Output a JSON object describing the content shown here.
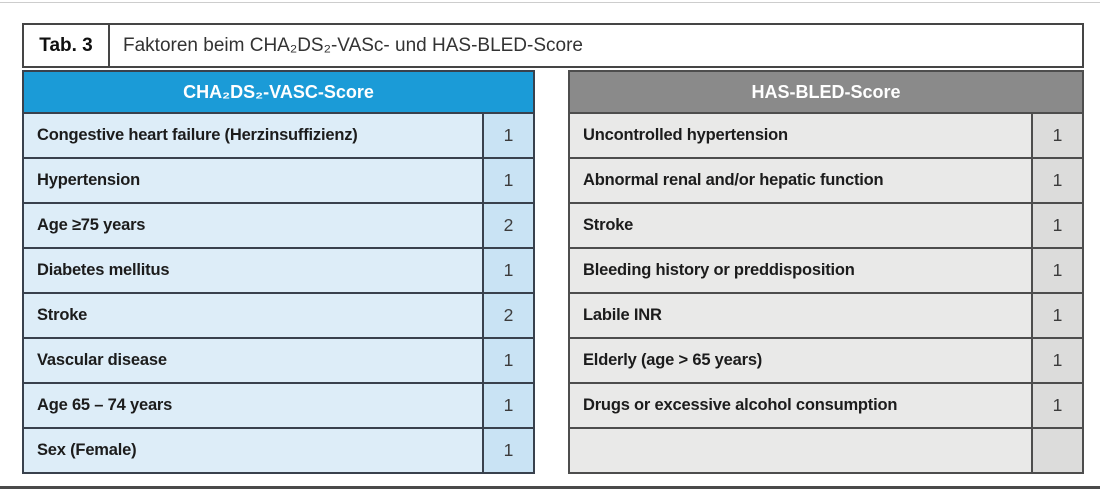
{
  "caption": {
    "number": "Tab. 3",
    "title": "Faktoren beim CHA₂DS₂-VASc- und HAS-BLED-Score"
  },
  "tables": {
    "left": {
      "header": "CHA₂DS₂-VASC-Score",
      "rows": [
        {
          "label": "Congestive heart failure (Herzinsuffizienz)",
          "score": "1"
        },
        {
          "label": "Hypertension",
          "score": "1"
        },
        {
          "label": "Age ≥75 years",
          "score": "2"
        },
        {
          "label": "Diabetes mellitus",
          "score": "1"
        },
        {
          "label": "Stroke",
          "score": "2"
        },
        {
          "label": "Vascular disease",
          "score": "1"
        },
        {
          "label": "Age 65 – 74 years",
          "score": "1"
        },
        {
          "label": "Sex (Female)",
          "score": "1"
        }
      ]
    },
    "right": {
      "header": "HAS-BLED-Score",
      "rows": [
        {
          "label": "Uncontrolled hypertension",
          "score": "1"
        },
        {
          "label": "Abnormal renal and/or hepatic function",
          "score": "1"
        },
        {
          "label": "Stroke",
          "score": "1"
        },
        {
          "label": "Bleeding history or preddisposition",
          "score": "1"
        },
        {
          "label": "Labile INR",
          "score": "1"
        },
        {
          "label": "Elderly (age > 65 years)",
          "score": "1"
        },
        {
          "label": "Drugs or excessive alcohol consumption",
          "score": "1"
        },
        {
          "label": "",
          "score": ""
        }
      ]
    }
  },
  "colors": {
    "left_header_bg": "#1b9bd7",
    "left_row_bg": "#ddedf8",
    "left_score_bg": "#c9e3f4",
    "left_border": "#39414d",
    "right_header_bg": "#8a8a8a",
    "right_row_bg": "#e9e9e8",
    "right_score_bg": "#dcdcdb",
    "right_border": "#4d4d4d",
    "header_text": "#ffffff"
  }
}
